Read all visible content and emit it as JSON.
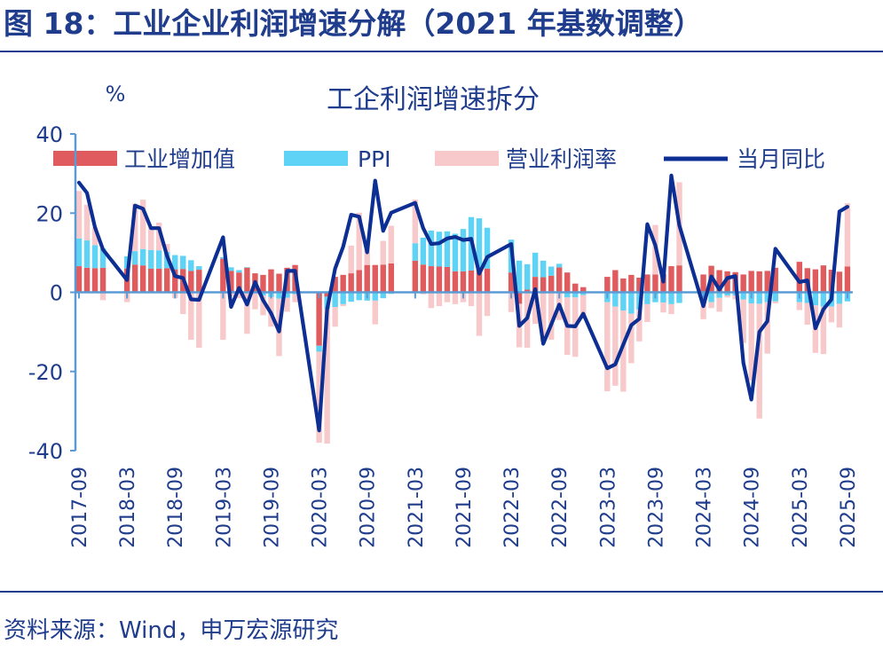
{
  "figure_title": "图 18：工业企业利润增速分解（2021 年基数调整）",
  "source_note": "资料来源：Wind，申万宏源研究",
  "colors": {
    "brand": "#1f3d8c",
    "industry_va": "#e05b5e",
    "ppi": "#5ed3f5",
    "profit_margin": "#f8c9ca",
    "monthly_yoy": "#0d2f93"
  },
  "chart_data": {
    "type": "bar",
    "title": "工企利润增速拆分",
    "ylabel": "%",
    "ylim": [
      -40,
      40
    ],
    "yticks": [
      -40,
      -20,
      0,
      20,
      40
    ],
    "grid": false,
    "legend_position": "top",
    "x_tick_labels": [
      "2017-09",
      "2018-03",
      "2018-09",
      "2019-03",
      "2019-09",
      "2020-03",
      "2020-09",
      "2021-03",
      "2021-09",
      "2022-03",
      "2022-09",
      "2023-03",
      "2023-09",
      "2024-03",
      "2024-09",
      "2025-03",
      "2025-09"
    ],
    "x": [
      "2017-09",
      "2017-10",
      "2017-11",
      "2017-12",
      "2018-01",
      "2018-02",
      "2018-03",
      "2018-04",
      "2018-05",
      "2018-06",
      "2018-07",
      "2018-08",
      "2018-09",
      "2018-10",
      "2018-11",
      "2018-12",
      "2019-01",
      "2019-02",
      "2019-03",
      "2019-04",
      "2019-05",
      "2019-06",
      "2019-07",
      "2019-08",
      "2019-09",
      "2019-10",
      "2019-11",
      "2019-12",
      "2020-01",
      "2020-02",
      "2020-03",
      "2020-04",
      "2020-05",
      "2020-06",
      "2020-07",
      "2020-08",
      "2020-09",
      "2020-10",
      "2020-11",
      "2020-12",
      "2021-01",
      "2021-02",
      "2021-03",
      "2021-04",
      "2021-05",
      "2021-06",
      "2021-07",
      "2021-08",
      "2021-09",
      "2021-10",
      "2021-11",
      "2021-12",
      "2022-01",
      "2022-02",
      "2022-03",
      "2022-04",
      "2022-05",
      "2022-06",
      "2022-07",
      "2022-08",
      "2022-09",
      "2022-10",
      "2022-11",
      "2022-12",
      "2023-01",
      "2023-02",
      "2023-03",
      "2023-04",
      "2023-05",
      "2023-06",
      "2023-07",
      "2023-08",
      "2023-09",
      "2023-10",
      "2023-11",
      "2023-12",
      "2024-01",
      "2024-02",
      "2024-03",
      "2024-04",
      "2024-05",
      "2024-06",
      "2024-07",
      "2024-08",
      "2024-09",
      "2024-10",
      "2024-11",
      "2024-12",
      "2025-01",
      "2025-02",
      "2025-03",
      "2025-04",
      "2025-05",
      "2025-06",
      "2025-07",
      "2025-08",
      "2025-09"
    ],
    "series": [
      {
        "name": "工业增加值",
        "type": "stacked_bar",
        "values": [
          6.6,
          6.2,
          6.1,
          6.2,
          null,
          null,
          6.0,
          7.0,
          6.8,
          6.0,
          6.0,
          6.1,
          5.8,
          5.9,
          5.4,
          5.7,
          null,
          null,
          8.5,
          5.4,
          5.0,
          6.3,
          4.8,
          4.4,
          5.8,
          4.7,
          6.2,
          6.9,
          null,
          null,
          -13.5,
          -1.1,
          3.9,
          4.4,
          4.8,
          5.6,
          6.9,
          6.9,
          7.0,
          7.3,
          null,
          null,
          8.0,
          7.0,
          6.6,
          6.5,
          6.4,
          5.3,
          5.3,
          5.5,
          5.8,
          6.0,
          null,
          null,
          5.0,
          -2.9,
          0.7,
          3.9,
          3.8,
          4.2,
          6.3,
          5.0,
          2.2,
          1.3,
          null,
          null,
          3.9,
          5.6,
          3.5,
          4.4,
          3.7,
          4.5,
          4.5,
          4.6,
          6.6,
          6.8,
          null,
          null,
          4.5,
          6.7,
          5.6,
          5.3,
          5.1,
          4.5,
          5.4,
          5.3,
          5.4,
          6.2,
          null,
          null,
          7.7,
          6.1,
          5.8,
          6.8,
          5.7,
          5.2,
          6.5
        ]
      },
      {
        "name": "PPI",
        "type": "stacked_bar",
        "values": [
          7.0,
          6.9,
          5.8,
          4.9,
          null,
          null,
          3.1,
          3.4,
          4.1,
          4.7,
          4.6,
          4.1,
          3.6,
          3.3,
          2.7,
          0.9,
          null,
          null,
          0.4,
          0.9,
          0.6,
          0.0,
          -0.3,
          -0.8,
          -1.2,
          -1.6,
          -1.4,
          -0.5,
          null,
          null,
          -1.5,
          -3.1,
          -3.7,
          -3.0,
          -2.4,
          -2.0,
          -2.1,
          -2.1,
          -1.5,
          -0.4,
          null,
          null,
          4.4,
          6.8,
          9.0,
          8.8,
          9.0,
          9.5,
          10.7,
          13.5,
          12.9,
          10.3,
          null,
          null,
          8.3,
          8.0,
          6.4,
          6.1,
          4.2,
          2.3,
          0.9,
          -1.3,
          -1.3,
          -0.7,
          null,
          null,
          -2.5,
          -3.6,
          -4.6,
          -5.4,
          -4.4,
          -3.0,
          -2.5,
          -2.6,
          -3.0,
          -2.7,
          null,
          null,
          -2.8,
          -2.5,
          -1.4,
          -0.8,
          -0.8,
          -1.8,
          -2.8,
          -2.9,
          -2.5,
          -2.3,
          null,
          null,
          -2.5,
          -2.7,
          -3.3,
          -3.6,
          -3.6,
          -2.9,
          -2.3
        ]
      },
      {
        "name": "营业利润率",
        "type": "stacked_bar",
        "values": [
          12.0,
          9.0,
          4.5,
          -2.0,
          null,
          null,
          -2.5,
          12.0,
          12.5,
          6.0,
          7.0,
          2.0,
          -1.5,
          -5.5,
          -12.0,
          -14.0,
          null,
          null,
          -12.0,
          -1.0,
          -1.5,
          -10.5,
          -4.0,
          -5.0,
          -7.5,
          -14.5,
          -3.5,
          -2.0,
          null,
          null,
          -23.0,
          -34.0,
          -5.0,
          -0.5,
          7.0,
          14.5,
          5.5,
          -6.0,
          6.0,
          9.5,
          null,
          null,
          11.0,
          -0.5,
          -4.0,
          -3.5,
          -2.5,
          -3.0,
          -2.5,
          -3.5,
          -11.0,
          -6.0,
          null,
          null,
          -5.0,
          -11.0,
          -14.0,
          -8.0,
          -12.5,
          -12.0,
          -7.0,
          -14.5,
          -15.0,
          -6.0,
          null,
          null,
          -22.5,
          -20.0,
          -20.5,
          -12.5,
          -8.0,
          -4.5,
          12.5,
          -2.5,
          -2.5,
          21.0,
          null,
          null,
          -4.0,
          -1.5,
          -3.5,
          -0.5,
          -1.0,
          -11.0,
          -19.5,
          -29.0,
          -13.0,
          -0.5,
          null,
          null,
          -2.0,
          -5.5,
          -12.0,
          -12.0,
          -4.0,
          -6.0,
          16.0
        ]
      },
      {
        "name": "当月同比",
        "type": "line",
        "values": [
          27.7,
          25.1,
          16.4,
          10.8,
          null,
          null,
          3.1,
          21.9,
          21.1,
          16.2,
          16.2,
          9.2,
          4.1,
          3.6,
          -1.8,
          -1.9,
          null,
          null,
          13.9,
          -3.7,
          1.1,
          -3.1,
          2.6,
          -2.0,
          -5.3,
          -9.9,
          5.4,
          5.4,
          null,
          null,
          -34.9,
          -4.3,
          6.0,
          11.5,
          19.6,
          19.1,
          10.1,
          28.2,
          15.5,
          20.1,
          null,
          null,
          22.6,
          16.2,
          12.2,
          12.4,
          13.6,
          14.0,
          13.2,
          13.5,
          4.7,
          8.9,
          null,
          null,
          12.2,
          -8.5,
          -6.5,
          0.8,
          -13.0,
          -8.1,
          -3.1,
          -8.5,
          -8.6,
          -5.4,
          null,
          null,
          -19.2,
          -18.2,
          -13.2,
          -8.3,
          -6.7,
          17.2,
          11.9,
          2.7,
          29.5,
          16.9,
          null,
          null,
          -3.5,
          4.0,
          0.7,
          3.6,
          4.1,
          -17.8,
          -27.1,
          -10.0,
          -7.3,
          11.0,
          null,
          null,
          2.6,
          3.0,
          -9.1,
          -4.3,
          -1.8,
          20.4,
          21.6
        ]
      }
    ]
  }
}
